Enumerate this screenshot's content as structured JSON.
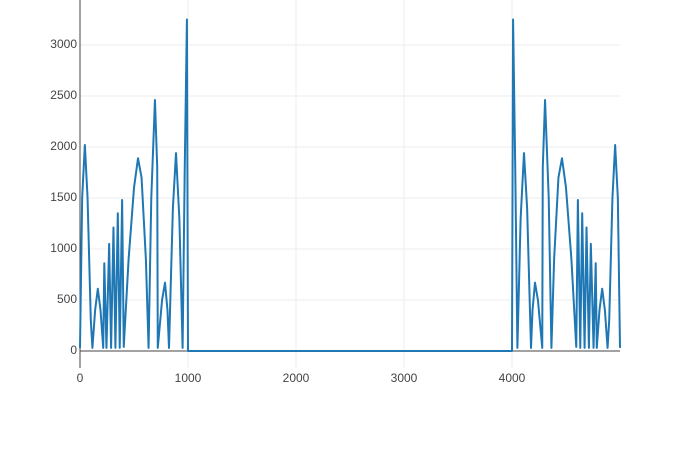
{
  "chart_data": {
    "type": "line",
    "color": "#1f77b4",
    "grid": true,
    "xlim": [
      0,
      5000
    ],
    "ylim": [
      -167,
      3441
    ],
    "xticks": [
      0,
      1000,
      2000,
      3000,
      4000
    ],
    "yticks": [
      0,
      500,
      1000,
      1500,
      2000,
      2500,
      3000
    ],
    "x": [
      0,
      20,
      45,
      70,
      100,
      115,
      140,
      165,
      190,
      215,
      225,
      245,
      270,
      288,
      310,
      328,
      350,
      368,
      390,
      405,
      450,
      500,
      537,
      570,
      610,
      635,
      660,
      694,
      715,
      720,
      760,
      787,
      810,
      824,
      860,
      889,
      920,
      950,
      970,
      990,
      1000,
      4000,
      4010,
      4030,
      4050,
      4080,
      4111,
      4140,
      4176,
      4190,
      4213,
      4240,
      4280,
      4285,
      4306,
      4340,
      4365,
      4390,
      4430,
      4463,
      4500,
      4550,
      4595,
      4610,
      4632,
      4650,
      4672,
      4690,
      4712,
      4730,
      4755,
      4775,
      4785,
      4810,
      4835,
      4860,
      4885,
      4900,
      4930,
      4955,
      4980,
      5000
    ],
    "values": [
      30,
      1500,
      2020,
      1500,
      300,
      30,
      400,
      610,
      400,
      30,
      860,
      30,
      1050,
      30,
      1210,
      30,
      1350,
      30,
      1480,
      40,
      900,
      1600,
      1890,
      1700,
      900,
      30,
      1500,
      2460,
      1800,
      30,
      500,
      670,
      400,
      30,
      1400,
      1940,
      1300,
      30,
      1800,
      3250,
      0,
      0,
      3250,
      1800,
      30,
      1300,
      1940,
      1400,
      30,
      400,
      670,
      500,
      30,
      1800,
      2460,
      1500,
      30,
      900,
      1700,
      1890,
      1600,
      900,
      40,
      1480,
      30,
      1350,
      30,
      1210,
      30,
      1050,
      30,
      860,
      30,
      400,
      610,
      400,
      30,
      300,
      1500,
      2020,
      1500,
      30
    ]
  }
}
